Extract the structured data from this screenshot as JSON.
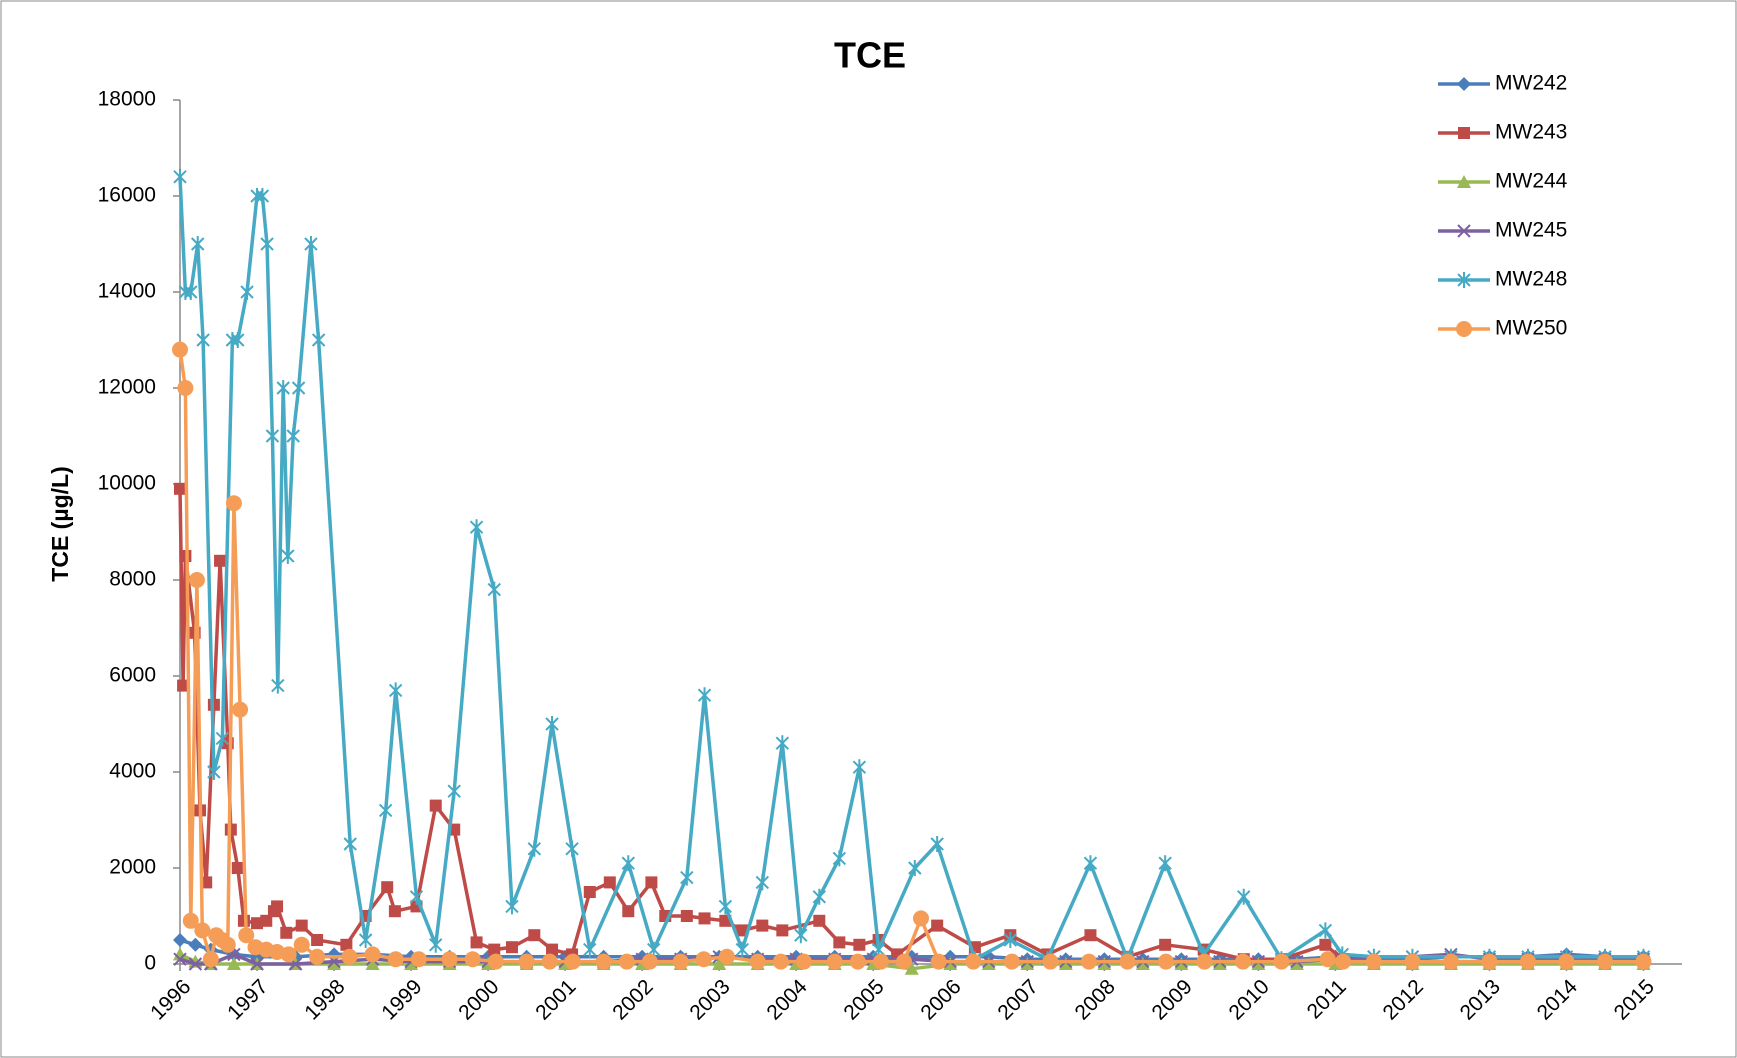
{
  "chart_data": {
    "type": "line",
    "title": "TCE",
    "y_label": "TCE (µg/L)",
    "xlim": [
      1996,
      2015.5
    ],
    "xticks": [
      1996,
      1997,
      1998,
      1999,
      2000,
      2001,
      2002,
      2003,
      2004,
      2005,
      2006,
      2007,
      2008,
      2009,
      2010,
      2011,
      2012,
      2013,
      2014,
      2015
    ],
    "ylim": [
      0,
      18000
    ],
    "yticks": [
      0,
      2000,
      4000,
      6000,
      8000,
      10000,
      12000,
      14000,
      16000,
      18000
    ],
    "legend": "top-right",
    "series": [
      {
        "name": "MW242",
        "color": "#4a7ebb",
        "marker": "diamond",
        "x": [
          1996,
          1996.2,
          1996.4,
          1996.7,
          1997,
          1997.5,
          1998,
          1998.5,
          1999,
          1999.5,
          2000,
          2000.5,
          2001,
          2001.5,
          2002,
          2002.5,
          2003,
          2003.5,
          2004,
          2004.5,
          2005,
          2005.5,
          2006,
          2006.5,
          2007,
          2007.5,
          2008,
          2008.5,
          2009,
          2009.5,
          2010,
          2010.5,
          2011,
          2011.5,
          2012,
          2012.5,
          2013,
          2013.5,
          2014,
          2014.5,
          2015
        ],
        "values": [
          500,
          400,
          300,
          200,
          150,
          150,
          200,
          200,
          150,
          150,
          150,
          150,
          150,
          150,
          150,
          150,
          150,
          150,
          150,
          150,
          150,
          150,
          150,
          150,
          100,
          100,
          100,
          100,
          100,
          100,
          100,
          100,
          150,
          100,
          100,
          150,
          150,
          150,
          200,
          150,
          150
        ]
      },
      {
        "name": "MW243",
        "color": "#be4b48",
        "marker": "square",
        "x": [
          1996,
          1996.04,
          1996.07,
          1996.19,
          1996.26,
          1996.34,
          1996.44,
          1996.52,
          1996.62,
          1996.66,
          1996.75,
          1996.83,
          1997,
          1997.12,
          1997.22,
          1997.26,
          1997.38,
          1997.58,
          1997.78,
          1998.16,
          1998.41,
          1998.69,
          1998.79,
          1999.07,
          1999.32,
          1999.56,
          1999.85,
          2000.08,
          2000.31,
          2000.6,
          2000.83,
          2001.09,
          2001.32,
          2001.58,
          2001.82,
          2002.12,
          2002.3,
          2002.58,
          2002.81,
          2003.08,
          2003.3,
          2003.56,
          2003.82,
          2004.3,
          2004.56,
          2004.82,
          2005.07,
          2005.31,
          2005.83,
          2006.32,
          2006.78,
          2007.26,
          2007.82,
          2008.3,
          2008.79,
          2009.29,
          2009.81,
          2010.3,
          2010.87,
          2011.09,
          2011.5,
          2012,
          2012.5,
          2013,
          2013.5,
          2014,
          2014.5,
          2015
        ],
        "values": [
          9900,
          5800,
          8500,
          6900,
          3200,
          1700,
          5400,
          8400,
          4600,
          2800,
          2000,
          900,
          850,
          900,
          1100,
          1200,
          650,
          800,
          500,
          400,
          1000,
          1600,
          1100,
          1200,
          3300,
          2800,
          450,
          300,
          350,
          600,
          300,
          200,
          1500,
          1700,
          1100,
          1700,
          1000,
          1000,
          950,
          900,
          700,
          800,
          700,
          900,
          450,
          400,
          500,
          200,
          800,
          350,
          600,
          200,
          600,
          150,
          400,
          300,
          100,
          100,
          400,
          100,
          50,
          50,
          50,
          50,
          50,
          50,
          50,
          50
        ]
      },
      {
        "name": "MW244",
        "color": "#98b954",
        "marker": "triangle",
        "x": [
          1996,
          1996.2,
          1996.4,
          1996.7,
          1997,
          1997.5,
          1998,
          1998.5,
          1999,
          1999.5,
          2000,
          2000.5,
          2001,
          2001.5,
          2002,
          2002.5,
          2003,
          2003.5,
          2004,
          2004.5,
          2005,
          2005.5,
          2006,
          2006.5,
          2007,
          2007.5,
          2008,
          2008.5,
          2009,
          2009.5,
          2010,
          2010.5,
          2011,
          2011.5,
          2012,
          2012.5,
          2013,
          2013.5,
          2014,
          2014.5,
          2015
        ],
        "values": [
          200,
          50,
          0,
          0,
          0,
          0,
          0,
          0,
          0,
          0,
          0,
          0,
          0,
          0,
          0,
          0,
          0,
          0,
          0,
          0,
          0,
          -100,
          0,
          0,
          0,
          0,
          0,
          0,
          0,
          0,
          0,
          0,
          0,
          0,
          0,
          0,
          0,
          0,
          0,
          0,
          0
        ]
      },
      {
        "name": "MW245",
        "color": "#7d60a0",
        "marker": "x",
        "x": [
          1996,
          1996.2,
          1996.4,
          1996.7,
          1997,
          1997.5,
          1998,
          1998.5,
          1999,
          1999.5,
          2000,
          2000.5,
          2001,
          2001.5,
          2002,
          2002.5,
          2003,
          2003.5,
          2004,
          2004.5,
          2005,
          2005.5,
          2006,
          2006.5,
          2007,
          2007.5,
          2008,
          2008.5,
          2009,
          2009.5,
          2010,
          2010.5,
          2011,
          2011.5,
          2012,
          2012.5,
          2013,
          2013.5,
          2014,
          2014.5,
          2015
        ],
        "values": [
          100,
          0,
          0,
          200,
          0,
          0,
          50,
          100,
          50,
          50,
          50,
          50,
          50,
          50,
          100,
          100,
          150,
          100,
          100,
          100,
          100,
          100,
          50,
          50,
          50,
          50,
          50,
          50,
          50,
          50,
          50,
          50,
          100,
          150,
          150,
          200,
          100,
          100,
          100,
          100,
          100
        ]
      },
      {
        "name": "MW248",
        "color": "#46aac5",
        "marker": "asterisk",
        "x": [
          1996,
          1996.07,
          1996.14,
          1996.23,
          1996.3,
          1996.44,
          1996.55,
          1996.68,
          1996.75,
          1996.87,
          1997,
          1997.07,
          1997.13,
          1997.2,
          1997.27,
          1997.34,
          1997.4,
          1997.47,
          1997.54,
          1997.7,
          1997.8,
          1998.21,
          1998.41,
          1998.67,
          1998.8,
          1999.07,
          1999.32,
          1999.56,
          1999.85,
          2000.08,
          2000.31,
          2000.6,
          2000.83,
          2001.09,
          2001.32,
          2001.82,
          2002.15,
          2002.58,
          2002.81,
          2003.08,
          2003.3,
          2003.56,
          2003.82,
          2004.06,
          2004.3,
          2004.56,
          2004.82,
          2005.07,
          2005.54,
          2005.83,
          2006.32,
          2006.78,
          2007.26,
          2007.82,
          2008.3,
          2008.79,
          2009.29,
          2009.81,
          2010.3,
          2010.87,
          2011.09,
          2011.5,
          2012,
          2012.5,
          2013,
          2013.5,
          2014,
          2014.5,
          2015
        ],
        "values": [
          16400,
          14000,
          14000,
          15000,
          13000,
          4000,
          4700,
          13000,
          13000,
          14000,
          16000,
          16000,
          15000,
          11000,
          5800,
          12000,
          8500,
          11000,
          12000,
          15000,
          13000,
          2500,
          500,
          3200,
          5700,
          1400,
          400,
          3600,
          9100,
          7800,
          1200,
          2400,
          5000,
          2400,
          300,
          2100,
          300,
          1800,
          5600,
          1200,
          300,
          1700,
          4600,
          600,
          1400,
          2200,
          4100,
          300,
          2000,
          2500,
          100,
          500,
          100,
          2100,
          100,
          2100,
          200,
          1400,
          100,
          700,
          200,
          150,
          150,
          150,
          150,
          150,
          150,
          150,
          150
        ]
      },
      {
        "name": "MW250",
        "color": "#f59d56",
        "marker": "circle",
        "x": [
          1996,
          1996.07,
          1996.14,
          1996.22,
          1996.29,
          1996.4,
          1996.47,
          1996.55,
          1996.62,
          1996.7,
          1996.78,
          1996.86,
          1996.98,
          1997.12,
          1997.26,
          1997.41,
          1997.58,
          1997.78,
          1998.2,
          1998.5,
          1998.8,
          1999.1,
          1999.5,
          1999.8,
          2000.1,
          2000.5,
          2000.8,
          2001.1,
          2001.5,
          2001.8,
          2002.1,
          2002.5,
          2002.8,
          2003.1,
          2003.5,
          2003.8,
          2004.1,
          2004.5,
          2004.8,
          2005.1,
          2005.4,
          2005.62,
          2005.85,
          2006.3,
          2006.8,
          2007.3,
          2007.8,
          2008.3,
          2008.8,
          2009.3,
          2009.8,
          2010.3,
          2010.9,
          2011.1,
          2011.5,
          2012,
          2012.5,
          2013,
          2013.5,
          2014,
          2014.5,
          2015
        ],
        "values": [
          12800,
          12000,
          900,
          8000,
          700,
          100,
          600,
          500,
          400,
          9600,
          5300,
          600,
          350,
          300,
          250,
          200,
          400,
          150,
          150,
          200,
          100,
          100,
          100,
          100,
          50,
          50,
          50,
          50,
          50,
          50,
          50,
          50,
          100,
          150,
          50,
          50,
          50,
          50,
          50,
          50,
          50,
          950,
          50,
          50,
          50,
          50,
          50,
          50,
          50,
          50,
          50,
          50,
          100,
          50,
          50,
          50,
          50,
          50,
          50,
          50,
          50,
          50
        ]
      }
    ]
  }
}
